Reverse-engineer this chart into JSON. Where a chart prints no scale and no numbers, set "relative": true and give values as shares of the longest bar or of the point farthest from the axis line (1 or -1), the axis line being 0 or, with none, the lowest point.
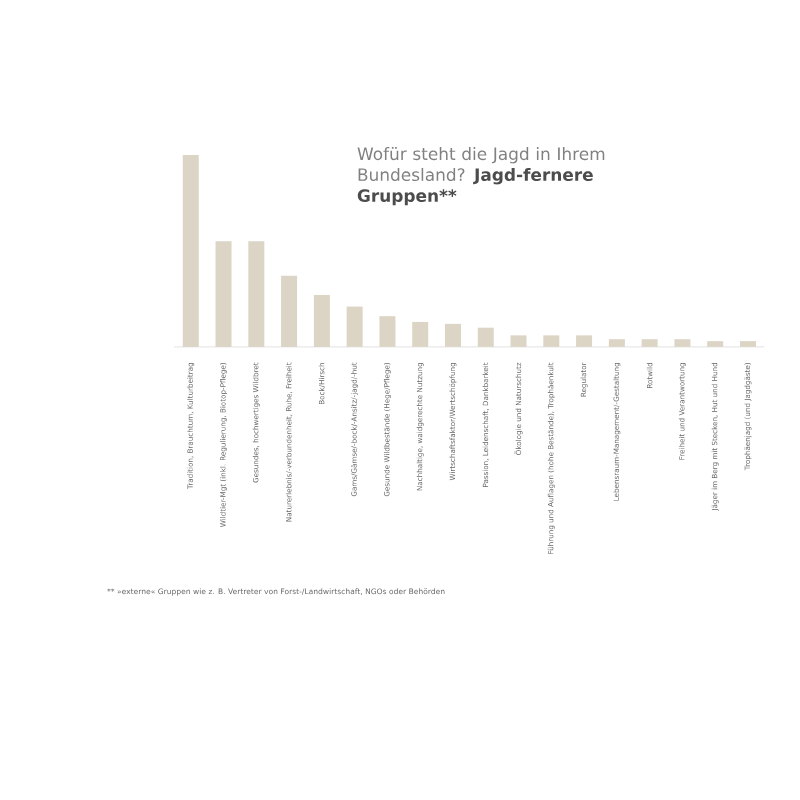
{
  "chart_data": {
    "type": "bar",
    "relative": true,
    "title": "Wofür steht die Jagd in Ihrem Bundesland?",
    "subtitle": "Jagd-fernere Gruppen**",
    "categories": [
      "Tradition, Brauchtum, Kulturbeitrag",
      "Wildtier-Mgt (inkl. Regulierung, Biotop-Pflege)",
      "Gesundes, hochwertiges Wildbret",
      "Naturerlebnis/-verbundenheit, Ruhe, Freiheit",
      "Bock/Hirsch",
      "Gams/Gämse/-bock/-Ansitz/-jagd/-hut",
      "Gesunde Wildbestände (Hege/Pflege)",
      "Nachhaltige, waidgerechte Nutzung",
      "Wirtschaftsfaktor/Wertschöpfung",
      "Passion, Leidenschaft, Dankbarkeit",
      "Ökologie und Naturschutz",
      "Führung und Auflagen (hohe Bestände), Trophäenkult",
      "Regulator",
      "Lebensraum-Management/-Gestaltung",
      "Rotwild",
      "Freiheit und Verantwortung",
      "Jäger im Berg mit Stecken, Hut und Hund",
      "Trophäenjagd (und Jagdgäste)"
    ],
    "values": [
      1,
      0.55,
      0.55,
      0.37,
      0.27,
      0.21,
      0.16,
      0.13,
      0.12,
      0.1,
      0.06,
      0.06,
      0.06,
      0.04,
      0.04,
      0.04,
      0.03,
      0.03
    ],
    "color": "#dcd5c5",
    "annotations": [
      "** »externe« Gruppen wie z. B. Vertreter von Forst-/Landwirtschaft, NGOs oder Behörden"
    ]
  }
}
